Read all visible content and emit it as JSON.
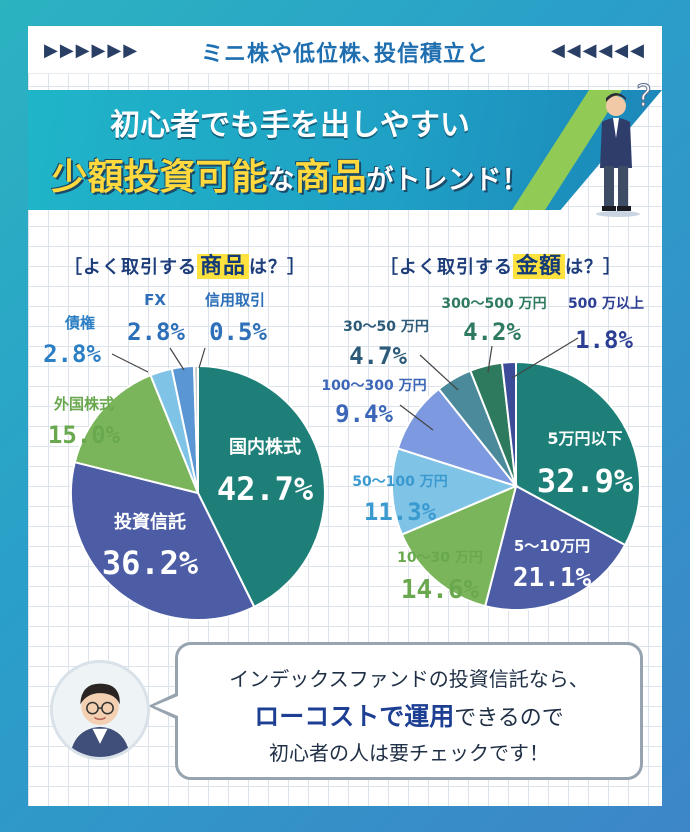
{
  "header": {
    "title": "ミニ株や低位株､投信積立と",
    "arrows_left": "▶▶▶▶▶▶",
    "arrows_right": "◀◀◀◀◀◀"
  },
  "banner": {
    "line1": "初心者でも手を出しやすい",
    "line2_main": "少額投資可能",
    "line2_na": "な",
    "line2_goods": "商品",
    "line2_tail": "がトレンド！"
  },
  "colors": {
    "teal_dark": "#1d7f78",
    "indigo": "#4c5da6",
    "green": "#7ab55c",
    "light_blue": "#7fc3e6",
    "blue_mid": "#5a96d4",
    "periwinkle": "#7d9ae0",
    "slate": "#4a8a9a",
    "forest": "#2e7a5e",
    "navy": "#3c4c99",
    "yellow": "#ffe23d"
  },
  "chart_data": [
    {
      "type": "pie",
      "title_prefix": "［よく取引する",
      "title_highlight": "商品",
      "title_suffix": "は？］",
      "slices": [
        {
          "label": "国内株式",
          "value": 42.7,
          "display": "42.7%",
          "color": "#1d7f78"
        },
        {
          "label": "投資信託",
          "value": 36.2,
          "display": "36.2%",
          "color": "#4c5da6"
        },
        {
          "label": "外国株式",
          "value": 15.0,
          "display": "15.0%",
          "color": "#7ab55c"
        },
        {
          "label": "債権",
          "value": 2.8,
          "display": "2.8%",
          "color": "#7fc3e6"
        },
        {
          "label": "FX",
          "value": 2.8,
          "display": "2.8%",
          "color": "#5a96d4"
        },
        {
          "label": "信用取引",
          "value": 0.5,
          "display": "0.5%",
          "color": "#c9c9c9"
        }
      ]
    },
    {
      "type": "pie",
      "title_prefix": "［よく取引する",
      "title_highlight": "金額",
      "title_suffix": "は？］",
      "slices": [
        {
          "label": "5万円以下",
          "value": 32.9,
          "display": "32.9%",
          "color": "#1d7f78"
        },
        {
          "label": "5～10万円",
          "value": 21.1,
          "display": "21.1%",
          "color": "#4c5da6"
        },
        {
          "label": "10～30 万円",
          "value": 14.6,
          "display": "14.6%",
          "color": "#7ab55c"
        },
        {
          "label": "50～100 万円",
          "value": 11.3,
          "display": "11.3%",
          "color": "#7fc3e6"
        },
        {
          "label": "100～300 万円",
          "value": 9.4,
          "display": "9.4%",
          "color": "#7d9ae0"
        },
        {
          "label": "30～50 万円",
          "value": 4.7,
          "display": "4.7%",
          "color": "#4a8a9a"
        },
        {
          "label": "300～500 万円",
          "value": 4.2,
          "display": "4.2%",
          "color": "#2e7a5e"
        },
        {
          "label": "500 万以上",
          "value": 1.8,
          "display": "1.8%",
          "color": "#3c4c99"
        }
      ]
    }
  ],
  "speech": {
    "line1": "インデックスファンドの投資信託なら、",
    "line2_emph": "ローコストで運用",
    "line2_rest": "できるので",
    "line3": "初心者の人は要チェックです！"
  }
}
